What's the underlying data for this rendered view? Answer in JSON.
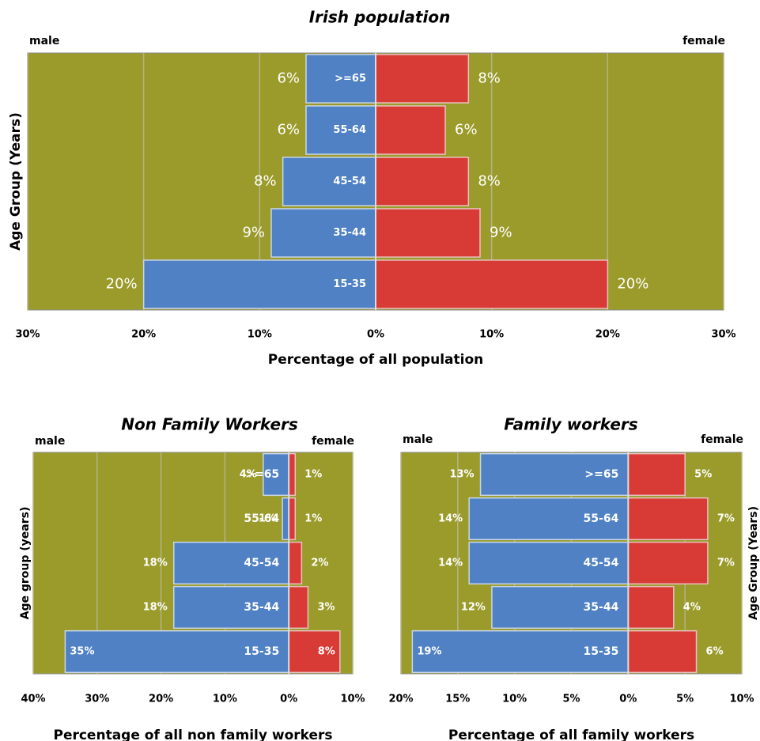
{
  "chart_data": [
    {
      "type": "pyramid",
      "title": "Irish population",
      "categories": [
        ">=65",
        "55-64",
        "45-54",
        "35-44",
        "15-35"
      ],
      "series": [
        {
          "name": "male",
          "color": "#4f81c4",
          "values": [
            6,
            6,
            8,
            9,
            20
          ],
          "value_labels": [
            "6%",
            "6%",
            "8%",
            "9%",
            "20%"
          ]
        },
        {
          "name": "female",
          "color": "#d83a35",
          "values": [
            8,
            6,
            8,
            9,
            20
          ],
          "value_labels": [
            "8%",
            "6%",
            "8%",
            "9%",
            "20%"
          ]
        }
      ],
      "x_label": "Percentage of all population",
      "y_label": "Age Group (Years)",
      "xlim": [
        -30,
        30
      ],
      "xticks": [
        {
          "value": -30,
          "label": "30%"
        },
        {
          "value": -20,
          "label": "20%"
        },
        {
          "value": -10,
          "label": "10%"
        },
        {
          "value": 0,
          "label": "0%"
        },
        {
          "value": 10,
          "label": "10%"
        },
        {
          "value": 20,
          "label": "20%"
        },
        {
          "value": 30,
          "label": "30%"
        }
      ],
      "grid": true,
      "background": "#9b9b2b"
    },
    {
      "type": "pyramid",
      "title": "Non Family Workers",
      "categories": [
        ">=65",
        "55-64",
        "45-54",
        "35-44",
        "15-35"
      ],
      "series": [
        {
          "name": "male",
          "color": "#4f81c4",
          "values": [
            4,
            1,
            18,
            18,
            35
          ],
          "value_labels": [
            "4%",
            "1%",
            "18%",
            "18%",
            "35%"
          ]
        },
        {
          "name": "female",
          "color": "#d83a35",
          "values": [
            1,
            1,
            2,
            3,
            8
          ],
          "value_labels": [
            "1%",
            "1%",
            "2%",
            "3%",
            "8%"
          ]
        }
      ],
      "x_label": "Percentage of all non family workers",
      "y_label": "Age group (years)",
      "xlim": [
        -40,
        10
      ],
      "xticks": [
        {
          "value": -40,
          "label": "40%"
        },
        {
          "value": -30,
          "label": "30%"
        },
        {
          "value": -20,
          "label": "20%"
        },
        {
          "value": -10,
          "label": "10%"
        },
        {
          "value": 0,
          "label": "0%"
        },
        {
          "value": 10,
          "label": "10%"
        }
      ],
      "grid": true,
      "background": "#9b9b2b"
    },
    {
      "type": "pyramid",
      "title": "Family workers",
      "categories": [
        ">=65",
        "55-64",
        "45-54",
        "35-44",
        "15-35"
      ],
      "series": [
        {
          "name": "male",
          "color": "#4f81c4",
          "values": [
            13,
            14,
            14,
            12,
            19
          ],
          "value_labels": [
            "13%",
            "14%",
            "14%",
            "12%",
            "19%"
          ]
        },
        {
          "name": "female",
          "color": "#d83a35",
          "values": [
            5,
            7,
            7,
            4,
            6
          ],
          "value_labels": [
            "5%",
            "7%",
            "7%",
            "4%",
            "6%"
          ]
        }
      ],
      "x_label": "Percentage of all family workers",
      "y_label": "Age Group (Years)",
      "xlim": [
        -20,
        10
      ],
      "xticks": [
        {
          "value": -20,
          "label": "20%"
        },
        {
          "value": -15,
          "label": "15%"
        },
        {
          "value": -10,
          "label": "10%"
        },
        {
          "value": -5,
          "label": "5%"
        },
        {
          "value": 0,
          "label": "0%"
        },
        {
          "value": 5,
          "label": "5%"
        },
        {
          "value": 10,
          "label": "10%"
        }
      ],
      "grid": true,
      "background": "#9b9b2b"
    }
  ]
}
